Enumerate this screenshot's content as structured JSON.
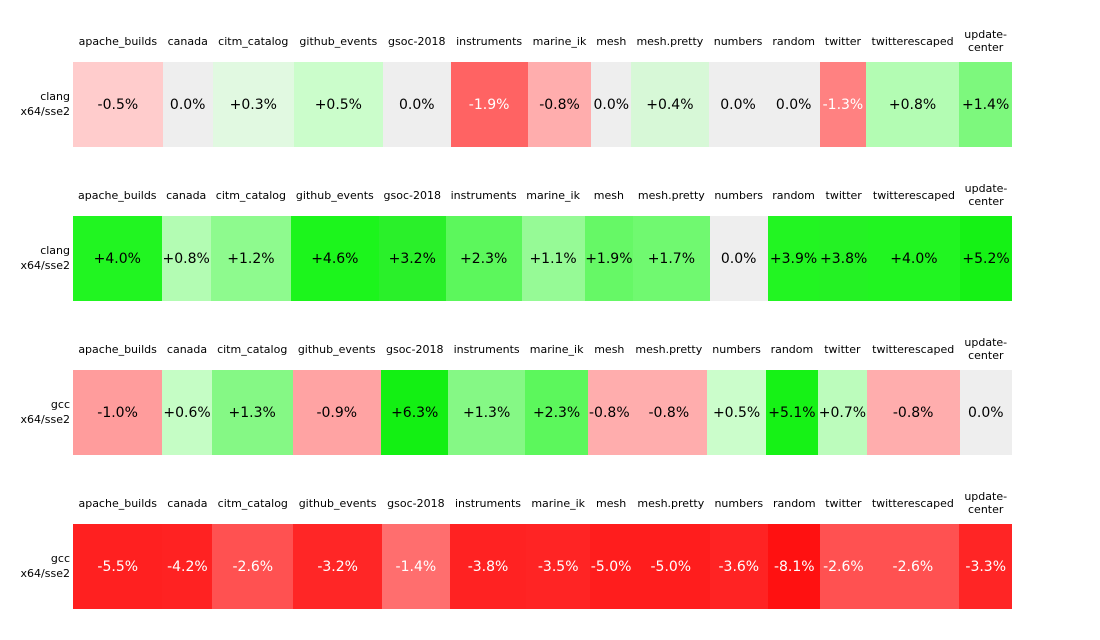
{
  "figure_title": "",
  "column_headers_display": [
    "apache_builds",
    "canada",
    "citm_catalog",
    "github_events",
    "gsoc-2018",
    "instruments",
    "marine_ik",
    "mesh",
    "mesh.pretty",
    "numbers",
    "random",
    "twitter",
    "twitterescaped",
    "update-\ncenter"
  ],
  "heatmaps": [
    {
      "row_label": "clang x64/sse2",
      "row_label_lines": [
        "clang",
        "x64/sse2"
      ],
      "cells": [
        {
          "col": "apache_builds",
          "value": "-0.5%",
          "bg": "#ffcccc",
          "fg": "#000000"
        },
        {
          "col": "canada",
          "value": "0.0%",
          "bg": "#eeeeee",
          "fg": "#000000"
        },
        {
          "col": "citm_catalog",
          "value": "+0.3%",
          "bg": "#e1f9e1",
          "fg": "#000000"
        },
        {
          "col": "github_events",
          "value": "+0.5%",
          "bg": "#cbfdcb",
          "fg": "#000000"
        },
        {
          "col": "gsoc-2018",
          "value": "0.0%",
          "bg": "#eeeeee",
          "fg": "#000000"
        },
        {
          "col": "instruments",
          "value": "-1.9%",
          "bg": "#ff6363",
          "fg": "#ffffff"
        },
        {
          "col": "marine_ik",
          "value": "-0.8%",
          "bg": "#ffadad",
          "fg": "#000000"
        },
        {
          "col": "mesh",
          "value": "0.0%",
          "bg": "#eeeeee",
          "fg": "#000000"
        },
        {
          "col": "mesh.pretty",
          "value": "+0.4%",
          "bg": "#d7f8d7",
          "fg": "#000000"
        },
        {
          "col": "numbers",
          "value": "0.0%",
          "bg": "#eeeeee",
          "fg": "#000000"
        },
        {
          "col": "random",
          "value": "0.0%",
          "bg": "#eeeeee",
          "fg": "#000000"
        },
        {
          "col": "twitter",
          "value": "-1.3%",
          "bg": "#ff8181",
          "fg": "#ffffff"
        },
        {
          "col": "twitterescaped",
          "value": "+0.8%",
          "bg": "#b3fcb3",
          "fg": "#000000"
        },
        {
          "col": "update-center",
          "value": "+1.4%",
          "bg": "#7df87d",
          "fg": "#000000"
        }
      ]
    },
    {
      "row_label": "clang x64/sse2",
      "row_label_lines": [
        "clang",
        "x64/sse2"
      ],
      "cells": [
        {
          "col": "apache_builds",
          "value": "+4.0%",
          "bg": "#21f521",
          "fg": "#000000"
        },
        {
          "col": "canada",
          "value": "+0.8%",
          "bg": "#b3fcb3",
          "fg": "#000000"
        },
        {
          "col": "citm_catalog",
          "value": "+1.2%",
          "bg": "#8efa8e",
          "fg": "#000000"
        },
        {
          "col": "github_events",
          "value": "+4.6%",
          "bg": "#1cf51c",
          "fg": "#000000"
        },
        {
          "col": "gsoc-2018",
          "value": "+3.2%",
          "bg": "#2af02a",
          "fg": "#000000"
        },
        {
          "col": "instruments",
          "value": "+2.3%",
          "bg": "#5cf75c",
          "fg": "#000000"
        },
        {
          "col": "marine_ik",
          "value": "+1.1%",
          "bg": "#96fa96",
          "fg": "#000000"
        },
        {
          "col": "mesh",
          "value": "+1.9%",
          "bg": "#66f866",
          "fg": "#000000"
        },
        {
          "col": "mesh.pretty",
          "value": "+1.7%",
          "bg": "#70f970",
          "fg": "#000000"
        },
        {
          "col": "numbers",
          "value": "0.0%",
          "bg": "#eeeeee",
          "fg": "#000000"
        },
        {
          "col": "random",
          "value": "+3.9%",
          "bg": "#22f522",
          "fg": "#000000"
        },
        {
          "col": "twitter",
          "value": "+3.8%",
          "bg": "#24f224",
          "fg": "#000000"
        },
        {
          "col": "twitterescaped",
          "value": "+4.0%",
          "bg": "#21f521",
          "fg": "#000000"
        },
        {
          "col": "update-center",
          "value": "+5.2%",
          "bg": "#15f215",
          "fg": "#000000"
        }
      ]
    },
    {
      "row_label": "gcc x64/sse2",
      "row_label_lines": [
        "gcc",
        "x64/sse2"
      ],
      "cells": [
        {
          "col": "apache_builds",
          "value": "-1.0%",
          "bg": "#ff9c9c",
          "fg": "#000000"
        },
        {
          "col": "canada",
          "value": "+0.6%",
          "bg": "#c5fdc5",
          "fg": "#000000"
        },
        {
          "col": "citm_catalog",
          "value": "+1.3%",
          "bg": "#85f885",
          "fg": "#000000"
        },
        {
          "col": "github_events",
          "value": "-0.9%",
          "bg": "#ffa3a3",
          "fg": "#000000"
        },
        {
          "col": "gsoc-2018",
          "value": "+6.3%",
          "bg": "#13f013",
          "fg": "#000000"
        },
        {
          "col": "instruments",
          "value": "+1.3%",
          "bg": "#85f885",
          "fg": "#000000"
        },
        {
          "col": "marine_ik",
          "value": "+2.3%",
          "bg": "#5cf75c",
          "fg": "#000000"
        },
        {
          "col": "mesh",
          "value": "-0.8%",
          "bg": "#ffadad",
          "fg": "#000000"
        },
        {
          "col": "mesh.pretty",
          "value": "-0.8%",
          "bg": "#ffadad",
          "fg": "#000000"
        },
        {
          "col": "numbers",
          "value": "+0.5%",
          "bg": "#cbfdcb",
          "fg": "#000000"
        },
        {
          "col": "random",
          "value": "+5.1%",
          "bg": "#16f216",
          "fg": "#000000"
        },
        {
          "col": "twitter",
          "value": "+0.7%",
          "bg": "#bcfcbc",
          "fg": "#000000"
        },
        {
          "col": "twitterescaped",
          "value": "-0.8%",
          "bg": "#ffadad",
          "fg": "#000000"
        },
        {
          "col": "update-center",
          "value": "0.0%",
          "bg": "#eeeeee",
          "fg": "#000000"
        }
      ]
    },
    {
      "row_label": "gcc x64/sse2",
      "row_label_lines": [
        "gcc",
        "x64/sse2"
      ],
      "cells": [
        {
          "col": "apache_builds",
          "value": "-5.5%",
          "bg": "#ff2020",
          "fg": "#ffffff"
        },
        {
          "col": "canada",
          "value": "-4.2%",
          "bg": "#ff2222",
          "fg": "#ffffff"
        },
        {
          "col": "citm_catalog",
          "value": "-2.6%",
          "bg": "#ff5151",
          "fg": "#ffffff"
        },
        {
          "col": "github_events",
          "value": "-3.2%",
          "bg": "#ff2626",
          "fg": "#ffffff"
        },
        {
          "col": "gsoc-2018",
          "value": "-1.4%",
          "bg": "#ff6e6e",
          "fg": "#ffffff"
        },
        {
          "col": "instruments",
          "value": "-3.8%",
          "bg": "#ff2222",
          "fg": "#ffffff"
        },
        {
          "col": "marine_ik",
          "value": "-3.5%",
          "bg": "#ff2424",
          "fg": "#ffffff"
        },
        {
          "col": "mesh",
          "value": "-5.0%",
          "bg": "#ff1d1d",
          "fg": "#ffffff"
        },
        {
          "col": "mesh.pretty",
          "value": "-5.0%",
          "bg": "#ff1d1d",
          "fg": "#ffffff"
        },
        {
          "col": "numbers",
          "value": "-3.6%",
          "bg": "#ff2323",
          "fg": "#ffffff"
        },
        {
          "col": "random",
          "value": "-8.1%",
          "bg": "#ff1111",
          "fg": "#ffffff"
        },
        {
          "col": "twitter",
          "value": "-2.6%",
          "bg": "#ff5151",
          "fg": "#ffffff"
        },
        {
          "col": "twitterescaped",
          "value": "-2.6%",
          "bg": "#ff5151",
          "fg": "#ffffff"
        },
        {
          "col": "update-center",
          "value": "-3.3%",
          "bg": "#ff2525",
          "fg": "#ffffff"
        }
      ]
    }
  ],
  "colors": {
    "background": "#ffffff",
    "zero_cell": "#eeeeee",
    "positive_saturated": "#22f522",
    "negative_saturated": "#ff2222",
    "text_dark": "#000000",
    "text_light": "#ffffff"
  },
  "chart_data": {
    "type": "heatmap",
    "title": "",
    "categories": [
      "apache_builds",
      "canada",
      "citm_catalog",
      "github_events",
      "gsoc-2018",
      "instruments",
      "marine_ik",
      "mesh",
      "mesh.pretty",
      "numbers",
      "random",
      "twitter",
      "twitterescaped",
      "update-center"
    ],
    "rows": [
      {
        "label": "clang x64/sse2",
        "values_pct": [
          -0.5,
          0.0,
          0.3,
          0.5,
          0.0,
          -1.9,
          -0.8,
          0.0,
          0.4,
          0.0,
          0.0,
          -1.3,
          0.8,
          1.4
        ]
      },
      {
        "label": "clang x64/sse2",
        "values_pct": [
          4.0,
          0.8,
          1.2,
          4.6,
          3.2,
          2.3,
          1.1,
          1.9,
          1.7,
          0.0,
          3.9,
          3.8,
          4.0,
          5.2
        ]
      },
      {
        "label": "gcc x64/sse2",
        "values_pct": [
          -1.0,
          0.6,
          1.3,
          -0.9,
          6.3,
          1.3,
          2.3,
          -0.8,
          -0.8,
          0.5,
          5.1,
          0.7,
          -0.8,
          0.0
        ]
      },
      {
        "label": "gcc x64/sse2",
        "values_pct": [
          -5.5,
          -4.2,
          -2.6,
          -3.2,
          -1.4,
          -3.8,
          -3.5,
          -5.0,
          -5.0,
          -3.6,
          -8.1,
          -2.6,
          -2.6,
          -3.3
        ]
      }
    ],
    "value_format": "signed percent, one decimal",
    "legend": "none",
    "grid": "off",
    "colormap": "diverging red (negative) / green (positive), light gray at 0.0%"
  }
}
